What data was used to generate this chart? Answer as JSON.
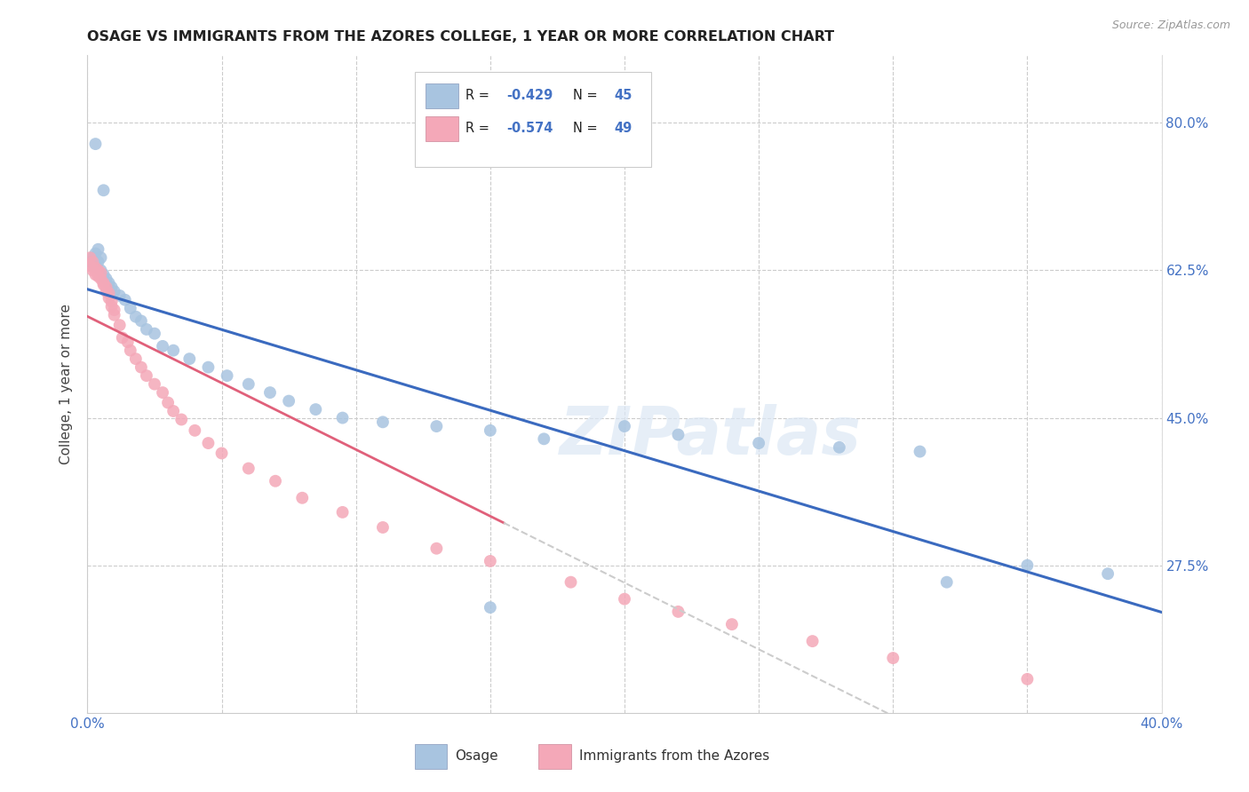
{
  "title": "OSAGE VS IMMIGRANTS FROM THE AZORES COLLEGE, 1 YEAR OR MORE CORRELATION CHART",
  "source": "Source: ZipAtlas.com",
  "ylabel": "College, 1 year or more",
  "ytick_labels": [
    "80.0%",
    "62.5%",
    "45.0%",
    "27.5%"
  ],
  "ytick_values": [
    0.8,
    0.625,
    0.45,
    0.275
  ],
  "xlim": [
    0.0,
    0.4
  ],
  "ylim": [
    0.1,
    0.88
  ],
  "legend_blue_r": "R = -0.429",
  "legend_blue_n": "N = 45",
  "legend_pink_r": "R = -0.574",
  "legend_pink_n": "N = 49",
  "legend_label_blue": "Osage",
  "legend_label_pink": "Immigrants from the Azores",
  "blue_color": "#a8c4e0",
  "pink_color": "#f4a8b8",
  "blue_line_color": "#3a6abf",
  "pink_line_color": "#e0607a",
  "watermark": "ZIPatlas",
  "osage_x": [
    0.001,
    0.002,
    0.003,
    0.003,
    0.004,
    0.004,
    0.005,
    0.005,
    0.006,
    0.007,
    0.008,
    0.009,
    0.01,
    0.012,
    0.014,
    0.016,
    0.018,
    0.02,
    0.022,
    0.025,
    0.028,
    0.032,
    0.038,
    0.045,
    0.052,
    0.06,
    0.068,
    0.075,
    0.085,
    0.095,
    0.11,
    0.13,
    0.15,
    0.17,
    0.2,
    0.22,
    0.25,
    0.28,
    0.31,
    0.35,
    0.003,
    0.006,
    0.15,
    0.32,
    0.38
  ],
  "osage_y": [
    0.635,
    0.64,
    0.63,
    0.645,
    0.635,
    0.65,
    0.625,
    0.64,
    0.62,
    0.615,
    0.61,
    0.605,
    0.6,
    0.595,
    0.59,
    0.58,
    0.57,
    0.565,
    0.555,
    0.55,
    0.535,
    0.53,
    0.52,
    0.51,
    0.5,
    0.49,
    0.48,
    0.47,
    0.46,
    0.45,
    0.445,
    0.44,
    0.435,
    0.425,
    0.44,
    0.43,
    0.42,
    0.415,
    0.41,
    0.275,
    0.775,
    0.72,
    0.225,
    0.255,
    0.265
  ],
  "azores_x": [
    0.001,
    0.001,
    0.002,
    0.002,
    0.003,
    0.003,
    0.004,
    0.004,
    0.005,
    0.005,
    0.006,
    0.006,
    0.007,
    0.007,
    0.008,
    0.008,
    0.009,
    0.009,
    0.01,
    0.01,
    0.012,
    0.013,
    0.015,
    0.016,
    0.018,
    0.02,
    0.022,
    0.025,
    0.028,
    0.03,
    0.032,
    0.035,
    0.04,
    0.045,
    0.05,
    0.06,
    0.07,
    0.08,
    0.095,
    0.11,
    0.13,
    0.15,
    0.18,
    0.2,
    0.22,
    0.24,
    0.27,
    0.3,
    0.35
  ],
  "azores_y": [
    0.64,
    0.63,
    0.635,
    0.625,
    0.628,
    0.62,
    0.625,
    0.618,
    0.622,
    0.615,
    0.61,
    0.608,
    0.605,
    0.6,
    0.598,
    0.592,
    0.588,
    0.582,
    0.578,
    0.572,
    0.56,
    0.545,
    0.54,
    0.53,
    0.52,
    0.51,
    0.5,
    0.49,
    0.48,
    0.468,
    0.458,
    0.448,
    0.435,
    0.42,
    0.408,
    0.39,
    0.375,
    0.355,
    0.338,
    0.32,
    0.295,
    0.28,
    0.255,
    0.235,
    0.22,
    0.205,
    0.185,
    0.165,
    0.14
  ],
  "blue_line_start_x": 0.0,
  "blue_line_end_x": 0.4,
  "pink_line_solid_end_x": 0.155,
  "pink_line_dashed_end_x": 0.4,
  "xtick_positions": [
    0.0,
    0.05,
    0.1,
    0.15,
    0.2,
    0.25,
    0.3,
    0.35,
    0.4
  ]
}
